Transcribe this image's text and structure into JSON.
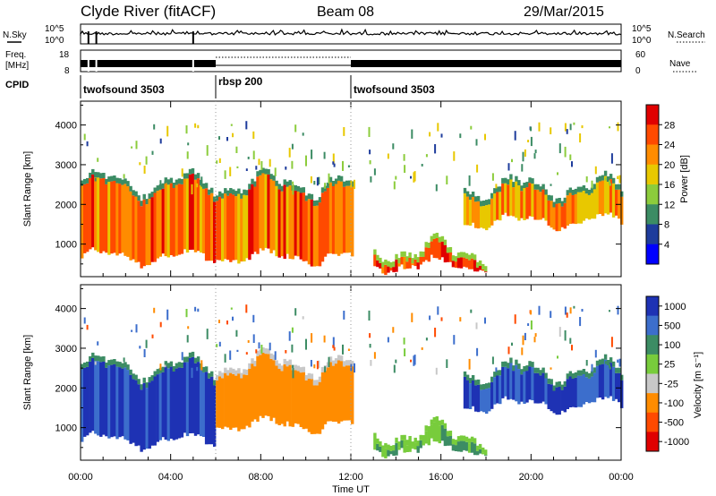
{
  "header": {
    "station": "Clyde River (fitACF)",
    "beam": "Beam 08",
    "date": "29/Mar/2015"
  },
  "strip": {
    "nsky_label": "N.Sky",
    "nsky_ticks": [
      "10^5",
      "10^0"
    ],
    "nsearch_label": "N.Search",
    "freq_label_1": "Freq.",
    "freq_label_2": "[MHz]",
    "freq_ticks": [
      "18",
      "8"
    ],
    "nave_label": "Nave",
    "nave_ticks": [
      "60",
      "0"
    ],
    "cpid_label": "CPID",
    "cpid_segments": [
      {
        "name": "twofsound 3503",
        "start_h": 0,
        "end_h": 6
      },
      {
        "name": "rbsp 200",
        "start_h": 6,
        "end_h": 12
      },
      {
        "name": "twofsound 3503",
        "start_h": 12,
        "end_h": 24
      }
    ]
  },
  "chart_data": [
    {
      "type": "heatmap",
      "title": "Power",
      "xlabel": "Time UT",
      "ylabel": "Slant Range [km]",
      "xlim_hours": [
        0,
        24
      ],
      "ylim_km": [
        180,
        4600
      ],
      "x_ticks": [
        "00:00",
        "04:00",
        "08:00",
        "12:00",
        "16:00",
        "20:00",
        "00:00"
      ],
      "y_ticks": [
        1000,
        2000,
        3000,
        4000
      ],
      "colorbar_label": "Power [dB]",
      "colorbar_ticks": [
        "28",
        "24",
        "20",
        "16",
        "12",
        "8",
        "4"
      ],
      "colorbar_colors": [
        "#e00000",
        "#ff4a00",
        "#ff8c00",
        "#e8c800",
        "#8ccc3c",
        "#3c8c64",
        "#1e3c9c",
        "#0000ff"
      ],
      "echo_regions": [
        {
          "t0": 0,
          "t1": 12,
          "r0": 600,
          "r1": 2500,
          "power_db": 22
        },
        {
          "t0": 13,
          "t1": 18,
          "r0": 400,
          "r1": 800,
          "power_db": 26
        },
        {
          "t0": 17,
          "t1": 24,
          "r0": 1500,
          "r1": 2400,
          "power_db": 20
        }
      ]
    },
    {
      "type": "heatmap",
      "title": "Velocity",
      "xlabel": "Time UT",
      "ylabel": "Slant Range [km]",
      "xlim_hours": [
        0,
        24
      ],
      "ylim_km": [
        180,
        4600
      ],
      "x_ticks": [
        "00:00",
        "04:00",
        "08:00",
        "12:00",
        "16:00",
        "20:00",
        "00:00"
      ],
      "y_ticks": [
        1000,
        2000,
        3000,
        4000
      ],
      "colorbar_label": "Velocity [m s⁻¹]",
      "colorbar_ticks": [
        "1000",
        "500",
        "100",
        "25",
        "-25",
        "-100",
        "-500",
        "-1000"
      ],
      "colorbar_colors": [
        "#1e32b4",
        "#3c6ecc",
        "#3c8c64",
        "#78cc3c",
        "#c8c8c8",
        "#ff8c00",
        "#ff4a00",
        "#e00000"
      ],
      "echo_regions": [
        {
          "t0": 0,
          "t1": 6,
          "r0": 600,
          "r1": 2500,
          "velocity": 800
        },
        {
          "t0": 6,
          "t1": 12,
          "r0": 1000,
          "r1": 2600,
          "velocity": -150
        },
        {
          "t0": 13,
          "t1": 18,
          "r0": 400,
          "r1": 800,
          "velocity": 80
        },
        {
          "t0": 17,
          "t1": 24,
          "r0": 1500,
          "r1": 2400,
          "velocity": 900
        }
      ]
    }
  ]
}
